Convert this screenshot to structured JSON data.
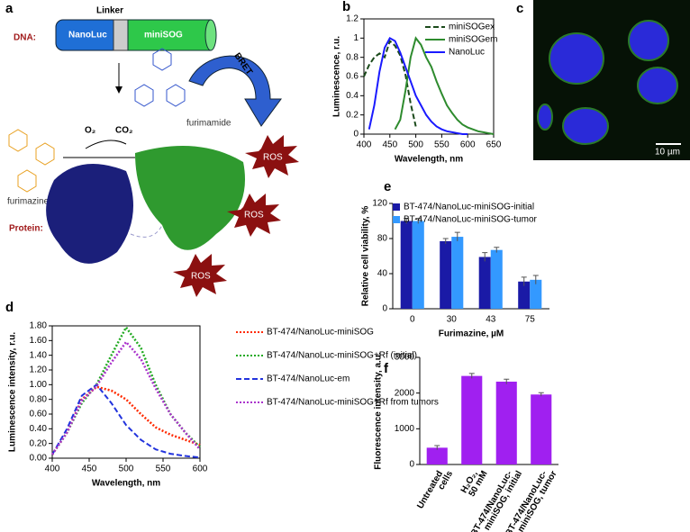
{
  "panel_a": {
    "label": "a",
    "linker": "Linker",
    "nanoluc": "NanoLuc",
    "minisog": "miniSOG",
    "dna": "DNA:",
    "o2": "O₂",
    "co2": "CO₂",
    "furimamide": "furimamide",
    "bret": "BRET",
    "furimazine": "furimazine",
    "protein": "Protein:",
    "ros": [
      "ROS",
      "ROS",
      "ROS"
    ]
  },
  "panel_c": {
    "label": "c",
    "scale": "10 µm"
  },
  "chart_data": [
    {
      "type": "line",
      "label": "b",
      "xlabel": "Wavelength, nm",
      "ylabel": "Luminescence, r.u.",
      "box": true,
      "legend": "upper right",
      "x": [
        400,
        410,
        420,
        430,
        440,
        450,
        460,
        470,
        480,
        490,
        500,
        510,
        520,
        530,
        540,
        550,
        560,
        570,
        580,
        590,
        600,
        610,
        620,
        630,
        640,
        650
      ],
      "xlim": [
        400,
        650
      ],
      "xticks": [
        400,
        450,
        500,
        550,
        600,
        650
      ],
      "ylim": [
        0,
        1.2
      ],
      "yticks": [
        0,
        0.2,
        0.4,
        0.6,
        0.8,
        1,
        1.2
      ],
      "series": [
        {
          "name": "miniSOGex",
          "color": "#1b4a1b",
          "style": "dashed",
          "values": [
            0.6,
            0.72,
            0.8,
            0.84,
            0.8,
            0.97,
            0.92,
            0.82,
            0.62,
            0.32,
            0.08,
            null,
            null,
            null,
            null,
            null,
            null,
            null,
            null,
            null,
            null,
            null,
            null,
            null,
            null,
            null
          ]
        },
        {
          "name": "miniSOGem",
          "color": "#2e8b2e",
          "style": "solid",
          "values": [
            null,
            null,
            null,
            null,
            null,
            null,
            0.05,
            0.15,
            0.45,
            0.8,
            1.0,
            0.93,
            0.8,
            0.7,
            0.55,
            0.42,
            0.3,
            0.22,
            0.15,
            0.1,
            0.07,
            0.05,
            0.03,
            0.02,
            0.01,
            0
          ]
        },
        {
          "name": "NanoLuc",
          "color": "#1a1aff",
          "style": "solid",
          "values": [
            null,
            0.05,
            0.3,
            0.65,
            0.9,
            1.0,
            0.97,
            0.85,
            0.7,
            0.55,
            0.4,
            0.3,
            0.2,
            0.13,
            0.08,
            0.05,
            0.03,
            0.02,
            0.01,
            0,
            0,
            null,
            null,
            null,
            null,
            null
          ]
        }
      ]
    },
    {
      "type": "line",
      "label": "d",
      "xlabel": "Wavelength, nm",
      "ylabel": "Luminescence intensity, r.u.",
      "box": true,
      "legend": "right",
      "x": [
        400,
        420,
        440,
        460,
        480,
        500,
        520,
        540,
        560,
        580,
        600
      ],
      "xlim": [
        400,
        600
      ],
      "xticks": [
        400,
        450,
        500,
        550,
        600
      ],
      "ylim": [
        0,
        1.8
      ],
      "yticks": [
        {
          "value": 0,
          "label": "0.00"
        },
        {
          "value": 0.2,
          "label": "0.20"
        },
        {
          "value": 0.4,
          "label": "0.40"
        },
        {
          "value": 0.6,
          "label": "0.60"
        },
        {
          "value": 0.8,
          "label": "0.80"
        },
        {
          "value": 1,
          "label": "1.00"
        },
        {
          "value": 1.2,
          "label": "1.20"
        },
        {
          "value": 1.4,
          "label": "1.40"
        },
        {
          "value": 1.6,
          "label": "1.60"
        },
        {
          "value": 1.8,
          "label": "1.80"
        }
      ],
      "series": [
        {
          "name": "BT-474/NanoLuc-miniSOG",
          "color": "#ff2a00",
          "style": "dotted",
          "values": [
            0.05,
            0.35,
            0.8,
            0.97,
            0.92,
            0.8,
            0.6,
            0.42,
            0.32,
            0.25,
            0.18
          ]
        },
        {
          "name": "BT-474/NanoLuc-miniSOG+Rf (initial)",
          "color": "#22aa22",
          "style": "dotted",
          "values": [
            0.05,
            0.35,
            0.75,
            1.0,
            1.4,
            1.78,
            1.5,
            1.0,
            0.6,
            0.35,
            0.15
          ]
        },
        {
          "name": "BT-474/NanoLuc-em",
          "color": "#2233dd",
          "style": "dashed",
          "values": [
            0.05,
            0.4,
            0.85,
            1.0,
            0.75,
            0.45,
            0.25,
            0.12,
            0.06,
            0.03,
            0.01
          ]
        },
        {
          "name": "BT-474/NanoLuc-miniSOG+Rf from tumors",
          "color": "#aa33cc",
          "style": "dotted",
          "values": [
            0.05,
            0.35,
            0.78,
            0.98,
            1.3,
            1.58,
            1.35,
            0.95,
            0.6,
            0.35,
            0.12
          ]
        }
      ]
    },
    {
      "type": "bar",
      "label": "e",
      "xlabel": "Furimazine, µM",
      "ylabel": "Relative cell viability, %",
      "box": false,
      "legend": "top",
      "categories": [
        "0",
        "30",
        "43",
        "75"
      ],
      "ylim": [
        0,
        120
      ],
      "yticks": [
        0,
        40,
        80,
        120
      ],
      "series": [
        {
          "name": "BT-474/NanoLuc-miniSOG-initial",
          "color": "#1a1aa6",
          "values": [
            100,
            77,
            59,
            31
          ],
          "errors": [
            3,
            3,
            5,
            5
          ]
        },
        {
          "name": "BT-474/NanoLuc-miniSOG-tumor",
          "color": "#3399ff",
          "values": [
            100,
            82,
            67,
            33
          ],
          "errors": [
            3,
            5,
            3,
            5
          ]
        }
      ]
    },
    {
      "type": "bar",
      "label": "f",
      "ylabel": "Fluorescence intensity, a.u.",
      "box": false,
      "categories": [
        [
          "Untreated",
          "cells"
        ],
        [
          "H₂O₂,",
          "50 mM"
        ],
        [
          "BT-474/NanoLuc-",
          "miniSOG, initial"
        ],
        [
          "BT-474/NanoLuc-",
          "miniSOG, tumor"
        ]
      ],
      "ylim": [
        0,
        3000
      ],
      "yticks": [
        0,
        1000,
        2000,
        3000
      ],
      "series": [
        {
          "name": null,
          "color": "#a020f0",
          "values": [
            470,
            2480,
            2320,
            1960
          ],
          "errors": [
            60,
            70,
            70,
            50
          ]
        }
      ]
    }
  ]
}
